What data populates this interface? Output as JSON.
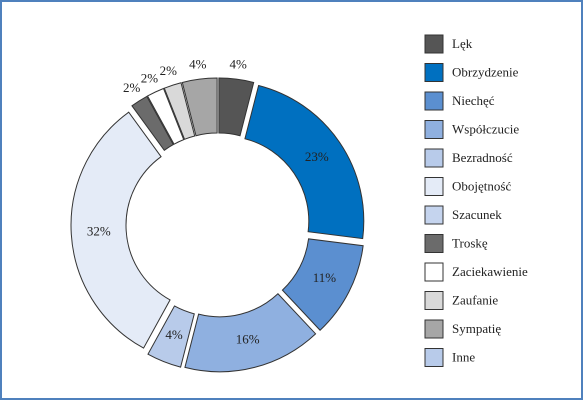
{
  "chart_data": {
    "type": "donut",
    "series": [
      {
        "name": "Lęk",
        "color": "#555555",
        "values": [
          4
        ],
        "value_labels": [
          "4%"
        ]
      },
      {
        "name": "Obrzydzenie",
        "color": "#0070c0",
        "values": [
          23
        ],
        "value_labels": [
          "23%"
        ]
      },
      {
        "name": "Niechęć",
        "color": "#5b8fd0",
        "values": [
          11
        ],
        "value_labels": [
          "11%"
        ]
      },
      {
        "name": "Współczucie",
        "color": "#8fb0e0",
        "values": [
          16
        ],
        "value_labels": [
          "16%"
        ]
      },
      {
        "name": "Bezradność",
        "color": "#b8cbea",
        "values": [
          4
        ],
        "value_labels": [
          "4%"
        ]
      },
      {
        "name": "Obojętność",
        "color": "#e4ebf7",
        "values": [
          32
        ],
        "value_labels": [
          "32%"
        ]
      },
      {
        "name": "Szacunek",
        "color": "#c5d4ee",
        "values": [
          null
        ],
        "value_labels": [
          null
        ]
      },
      {
        "name": "Troskę",
        "color": "#6b6b6b",
        "values": [
          2
        ],
        "value_labels": [
          "2%"
        ]
      },
      {
        "name": "Zaciekawienie",
        "color": "#ffffff",
        "values": [
          2
        ],
        "value_labels": [
          "2%"
        ]
      },
      {
        "name": "Zaufanie",
        "color": "#d9d9d9",
        "values": [
          2
        ],
        "value_labels": [
          "2%"
        ]
      },
      {
        "name": "Sympatię",
        "color": "#a6a6a6",
        "values": [
          4
        ],
        "value_labels": [
          "4%"
        ]
      },
      {
        "name": "Inne",
        "color": "#b8cbea",
        "values": [
          null
        ],
        "value_labels": [
          null
        ]
      }
    ]
  }
}
